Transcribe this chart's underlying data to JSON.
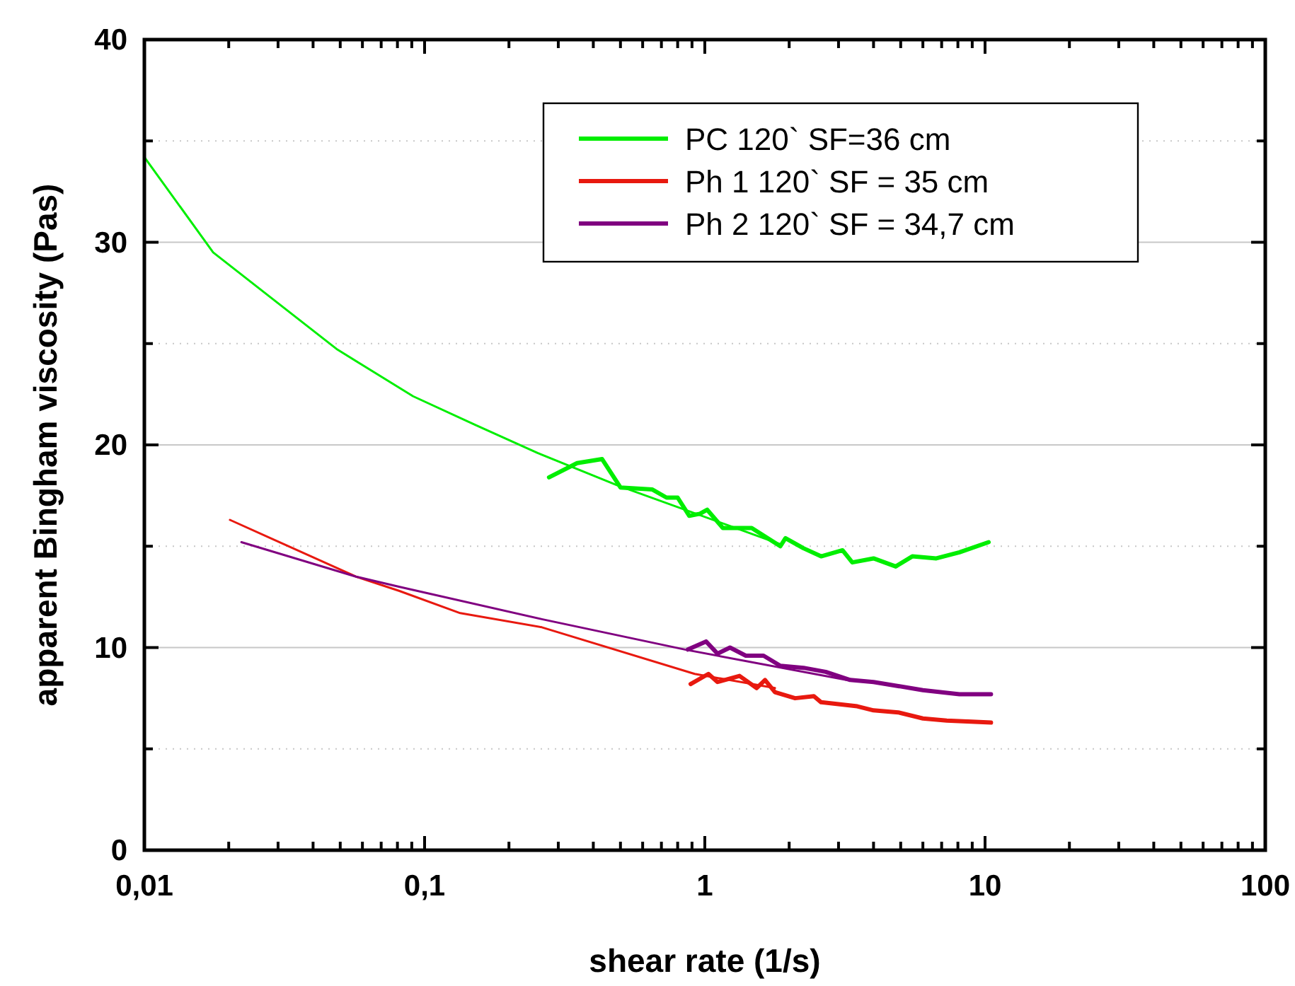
{
  "chart_data": {
    "type": "line",
    "xlabel": "shear rate (1/s)",
    "ylabel": "apparent Bingham viscosity (Pas)",
    "log": "x",
    "xlim": [
      0.01,
      100
    ],
    "ylim": [
      0,
      40
    ],
    "xticks": [
      {
        "value": 0.01,
        "label": "0,01"
      },
      {
        "value": 0.02,
        "label": null
      },
      {
        "value": 0.03,
        "label": null
      },
      {
        "value": 0.04,
        "label": null
      },
      {
        "value": 0.05,
        "label": null
      },
      {
        "value": 0.06,
        "label": null
      },
      {
        "value": 0.07,
        "label": null
      },
      {
        "value": 0.08,
        "label": null
      },
      {
        "value": 0.09,
        "label": null
      },
      {
        "value": 0.1,
        "label": "0,1"
      },
      {
        "value": 0.2,
        "label": null
      },
      {
        "value": 0.3,
        "label": null
      },
      {
        "value": 0.4,
        "label": null
      },
      {
        "value": 0.5,
        "label": null
      },
      {
        "value": 0.6,
        "label": null
      },
      {
        "value": 0.7,
        "label": null
      },
      {
        "value": 0.8,
        "label": null
      },
      {
        "value": 0.9,
        "label": null
      },
      1,
      {
        "value": 2,
        "label": null
      },
      {
        "value": 3,
        "label": null
      },
      {
        "value": 4,
        "label": null
      },
      {
        "value": 5,
        "label": null
      },
      {
        "value": 6,
        "label": null
      },
      {
        "value": 7,
        "label": null
      },
      {
        "value": 8,
        "label": null
      },
      {
        "value": 9,
        "label": null
      },
      10,
      {
        "value": 20,
        "label": null
      },
      {
        "value": 30,
        "label": null
      },
      {
        "value": 40,
        "label": null
      },
      {
        "value": 50,
        "label": null
      },
      {
        "value": 60,
        "label": null
      },
      {
        "value": 70,
        "label": null
      },
      {
        "value": 80,
        "label": null
      },
      {
        "value": 90,
        "label": null
      },
      100
    ],
    "yticks": [
      0,
      {
        "value": 5,
        "label": null
      },
      10,
      {
        "value": 15,
        "label": null
      },
      20,
      {
        "value": 25,
        "label": null
      },
      30,
      {
        "value": 35,
        "label": null
      },
      40
    ],
    "grid": "y",
    "legend": "top right",
    "line_style": "solid",
    "series": [
      {
        "name": "PC 120` SF=36 cm",
        "color": "#00ee00",
        "x": [
          0.278,
          0.35,
          0.43,
          0.5,
          0.65,
          0.73,
          0.8,
          0.88,
          0.96,
          1.02,
          1.16,
          1.47,
          1.86,
          1.94,
          2.25,
          2.6,
          3.1,
          3.36,
          4.0,
          4.8,
          5.5,
          6.7,
          8.1,
          10.3
        ],
        "values": [
          18.4,
          19.1,
          19.3,
          17.9,
          17.8,
          17.4,
          17.4,
          16.5,
          16.6,
          16.8,
          15.9,
          15.9,
          15.0,
          15.4,
          14.9,
          14.5,
          14.8,
          14.2,
          14.4,
          14.0,
          14.5,
          14.4,
          14.7,
          15.2
        ]
      },
      {
        "color": "#00ee00",
        "x": [
          0.01,
          0.0176,
          0.0281,
          0.0489,
          0.091,
          0.151,
          0.253,
          0.489,
          1.86
        ],
        "values": [
          34.2,
          29.5,
          27.3,
          24.7,
          22.4,
          21.0,
          19.6,
          18.0,
          15.1
        ]
      },
      {
        "name": "Ph 1 120` SF = 35 cm",
        "color": "#e8190f",
        "x": [
          0.89,
          1.03,
          1.11,
          1.33,
          1.53,
          1.64,
          1.78,
          2.1,
          2.45,
          2.6,
          3.5,
          4.0,
          4.9,
          6.0,
          7.3,
          10.5
        ],
        "values": [
          8.2,
          8.7,
          8.3,
          8.6,
          8.0,
          8.4,
          7.8,
          7.5,
          7.6,
          7.3,
          7.1,
          6.9,
          6.8,
          6.5,
          6.4,
          6.3
        ]
      },
      {
        "color": "#e8190f",
        "x": [
          0.0202,
          0.0569,
          0.081,
          0.134,
          0.262,
          0.92,
          1.78
        ],
        "values": [
          16.3,
          13.5,
          12.8,
          11.7,
          11.0,
          8.7,
          8.0
        ]
      },
      {
        "name": "Ph 2 120` SF = 34,7 cm",
        "color": "#800080",
        "x": [
          0.87,
          1.01,
          1.11,
          1.23,
          1.4,
          1.62,
          1.86,
          2.25,
          2.7,
          3.3,
          4.0,
          4.9,
          6.0,
          8.1,
          10.5
        ],
        "values": [
          9.9,
          10.3,
          9.7,
          10.0,
          9.6,
          9.6,
          9.1,
          9.0,
          8.8,
          8.4,
          8.3,
          8.1,
          7.9,
          7.7,
          7.7
        ]
      },
      {
        "color": "#800080",
        "x": [
          0.0222,
          0.0569,
          0.081,
          0.262,
          0.85,
          3.2
        ],
        "values": [
          15.2,
          13.5,
          13.0,
          11.4,
          9.9,
          8.4
        ]
      }
    ]
  }
}
